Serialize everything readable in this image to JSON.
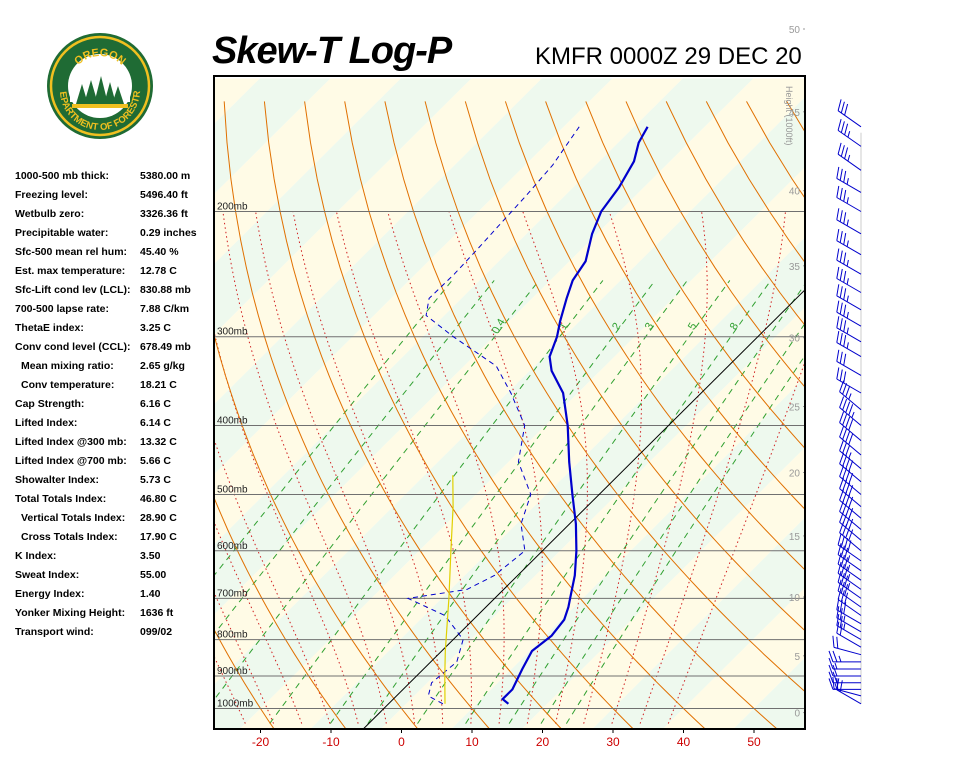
{
  "header": {
    "title": "Skew-T Log-P",
    "station": "KMFR 0000Z 29 DEC 20"
  },
  "logo": {
    "top_text": "OREGON",
    "ring_text": "DEPARTMENT OF FORESTRY"
  },
  "indices": [
    {
      "label": "1000-500 mb thick:",
      "value": "5380.00 m"
    },
    {
      "label": "Freezing level:",
      "value": "5496.40 ft"
    },
    {
      "label": "Wetbulb zero:",
      "value": "3326.36 ft"
    },
    {
      "label": "Precipitable water:",
      "value": "0.29 inches"
    },
    {
      "label": "Sfc-500 mean rel hum:",
      "value": "45.40 %"
    },
    {
      "label": "Est. max temperature:",
      "value": "12.78 C"
    },
    {
      "label": "Sfc-Lift cond lev (LCL):",
      "value": "830.88 mb"
    },
    {
      "label": "700-500 lapse rate:",
      "value": "7.88 C/km"
    },
    {
      "label": "ThetaE index:",
      "value": "3.25 C"
    },
    {
      "label": "Conv cond level (CCL):",
      "value": "678.49 mb"
    },
    {
      "label": "Mean mixing ratio:",
      "value": "2.65 g/kg",
      "indent": true
    },
    {
      "label": "Conv temperature:",
      "value": "18.21 C",
      "indent": true
    },
    {
      "label": "Cap Strength:",
      "value": "6.16 C"
    },
    {
      "label": "Lifted Index:",
      "value": "6.14 C"
    },
    {
      "label": "Lifted Index @300 mb:",
      "value": "13.32 C"
    },
    {
      "label": "Lifted Index @700 mb:",
      "value": "5.66 C"
    },
    {
      "label": "Showalter Index:",
      "value": "5.73 C"
    },
    {
      "label": "Total Totals Index:",
      "value": "46.80 C"
    },
    {
      "label": "Vertical Totals Index:",
      "value": "28.90 C",
      "indent": true
    },
    {
      "label": "Cross Totals Index:",
      "value": "17.90 C",
      "indent": true
    },
    {
      "label": "K Index:",
      "value": "3.50"
    },
    {
      "label": "Sweat Index:",
      "value": "55.00"
    },
    {
      "label": "Energy Index:",
      "value": "1.40"
    },
    {
      "label": "Yonker Mixing Height:",
      "value": "1636 ft"
    },
    {
      "label": "Transport wind:",
      "value": "099/02"
    }
  ],
  "chart_data": {
    "type": "line",
    "x_ticks": [
      -20,
      -10,
      0,
      10,
      20,
      30,
      40,
      50
    ],
    "pressure_levels": [
      {
        "p": 1000,
        "label": "1000mb"
      },
      {
        "p": 900,
        "label": "900mb"
      },
      {
        "p": 800,
        "label": "800mb"
      },
      {
        "p": 700,
        "label": "700mb"
      },
      {
        "p": 600,
        "label": "600mb"
      },
      {
        "p": 500,
        "label": "500mb"
      },
      {
        "p": 400,
        "label": "400mb"
      },
      {
        "p": 300,
        "label": "300mb"
      },
      {
        "p": 200,
        "label": "200mb"
      }
    ],
    "height_axis_title": "Height (1000ft)",
    "height_ticks": [
      0,
      5,
      10,
      15,
      20,
      25,
      30,
      35,
      40,
      45,
      50
    ],
    "mixing_ratio_labels": [
      "0.4",
      "1",
      "2",
      "3",
      "5",
      "8"
    ],
    "colors": {
      "temperature": "#0000cc",
      "dewpoint": "#0000cc",
      "parcel": "#e0d000",
      "dry_adiabat": "#e07000",
      "moist_adiabat": "#d02020",
      "mixing_ratio": "#30a030",
      "wind_barb": "#0000cc",
      "band_yellow": "#fffbe6",
      "band_green": "#eef9ee"
    },
    "series": [
      {
        "style": "solid",
        "points": [
          {
            "p": 985,
            "t": 14.5
          },
          {
            "p": 970,
            "t": 13.0
          },
          {
            "p": 940,
            "t": 13.0
          },
          {
            "p": 880,
            "t": 11.5
          },
          {
            "p": 830,
            "t": 10.3
          },
          {
            "p": 790,
            "t": 10.9
          },
          {
            "p": 750,
            "t": 10.4
          },
          {
            "p": 720,
            "t": 9.2
          },
          {
            "p": 700,
            "t": 8.2
          },
          {
            "p": 650,
            "t": 5.6
          },
          {
            "p": 600,
            "t": 2.3
          },
          {
            "p": 550,
            "t": -1.6
          },
          {
            "p": 500,
            "t": -6.3
          },
          {
            "p": 450,
            "t": -11.4
          },
          {
            "p": 400,
            "t": -16.8
          },
          {
            "p": 360,
            "t": -22.1
          },
          {
            "p": 335,
            "t": -26.9
          },
          {
            "p": 320,
            "t": -29.2
          },
          {
            "p": 300,
            "t": -31.0
          },
          {
            "p": 285,
            "t": -32.8
          },
          {
            "p": 265,
            "t": -35.1
          },
          {
            "p": 250,
            "t": -36.8
          },
          {
            "p": 235,
            "t": -37.7
          },
          {
            "p": 215,
            "t": -40.7
          },
          {
            "p": 200,
            "t": -42.6
          },
          {
            "p": 185,
            "t": -43.5
          },
          {
            "p": 170,
            "t": -45.1
          },
          {
            "p": 160,
            "t": -47.1
          },
          {
            "p": 152,
            "t": -48.1
          }
        ]
      },
      {
        "style": "dashed",
        "points": [
          {
            "p": 985,
            "t": 5.2
          },
          {
            "p": 960,
            "t": 2.0
          },
          {
            "p": 920,
            "t": 0.6
          },
          {
            "p": 860,
            "t": 1.2
          },
          {
            "p": 800,
            "t": -1.1
          },
          {
            "p": 740,
            "t": -7.1
          },
          {
            "p": 700,
            "t": -14.8
          },
          {
            "p": 680,
            "t": -7.7
          },
          {
            "p": 650,
            "t": -5.8
          },
          {
            "p": 600,
            "t": -5.0
          },
          {
            "p": 550,
            "t": -9.4
          },
          {
            "p": 500,
            "t": -12.2
          },
          {
            "p": 450,
            "t": -18.6
          },
          {
            "p": 400,
            "t": -22.9
          },
          {
            "p": 360,
            "t": -29.5
          },
          {
            "p": 330,
            "t": -35.4
          },
          {
            "p": 300,
            "t": -45.7
          },
          {
            "p": 280,
            "t": -52.6
          },
          {
            "p": 265,
            "t": -54.6
          },
          {
            "p": 245,
            "t": -54.5
          },
          {
            "p": 225,
            "t": -54.8
          },
          {
            "p": 210,
            "t": -55.1
          },
          {
            "p": 190,
            "t": -55.5
          },
          {
            "p": 172,
            "t": -56.1
          },
          {
            "p": 160,
            "t": -57.1
          },
          {
            "p": 152,
            "t": -57.8
          }
        ]
      },
      {
        "style": "parcel",
        "points": [
          {
            "p": 985,
            "t": 5.5
          },
          {
            "p": 900,
            "t": 1.5
          },
          {
            "p": 830,
            "t": -2.0
          },
          {
            "p": 700,
            "t": -9.0
          },
          {
            "p": 600,
            "t": -15.5
          },
          {
            "p": 520,
            "t": -21.5
          },
          {
            "p": 470,
            "t": -26.0
          }
        ]
      }
    ],
    "wind_barbs": [
      {
        "p": 985,
        "dir": 300,
        "spd": 20
      },
      {
        "p": 960,
        "dir": 285,
        "spd": 20
      },
      {
        "p": 940,
        "dir": 270,
        "spd": 15
      },
      {
        "p": 920,
        "dir": 270,
        "spd": 20
      },
      {
        "p": 900,
        "dir": 270,
        "spd": 20
      },
      {
        "p": 880,
        "dir": 270,
        "spd": 15
      },
      {
        "p": 860,
        "dir": 270,
        "spd": 25
      },
      {
        "p": 840,
        "dir": 285,
        "spd": 20
      },
      {
        "p": 820,
        "dir": 300,
        "spd": 20
      },
      {
        "p": 800,
        "dir": 300,
        "spd": 25
      },
      {
        "p": 780,
        "dir": 300,
        "spd": 25
      },
      {
        "p": 760,
        "dir": 300,
        "spd": 30
      },
      {
        "p": 740,
        "dir": 305,
        "spd": 30
      },
      {
        "p": 720,
        "dir": 305,
        "spd": 30
      },
      {
        "p": 700,
        "dir": 305,
        "spd": 35
      },
      {
        "p": 680,
        "dir": 305,
        "spd": 35
      },
      {
        "p": 660,
        "dir": 305,
        "spd": 35
      },
      {
        "p": 640,
        "dir": 305,
        "spd": 35
      },
      {
        "p": 620,
        "dir": 305,
        "spd": 40
      },
      {
        "p": 600,
        "dir": 310,
        "spd": 40
      },
      {
        "p": 580,
        "dir": 310,
        "spd": 40
      },
      {
        "p": 560,
        "dir": 310,
        "spd": 40
      },
      {
        "p": 540,
        "dir": 310,
        "spd": 40
      },
      {
        "p": 520,
        "dir": 310,
        "spd": 40
      },
      {
        "p": 500,
        "dir": 310,
        "spd": 40
      },
      {
        "p": 480,
        "dir": 310,
        "spd": 40
      },
      {
        "p": 460,
        "dir": 310,
        "spd": 35
      },
      {
        "p": 440,
        "dir": 310,
        "spd": 40
      },
      {
        "p": 420,
        "dir": 310,
        "spd": 40
      },
      {
        "p": 400,
        "dir": 310,
        "spd": 45
      },
      {
        "p": 380,
        "dir": 310,
        "spd": 35
      },
      {
        "p": 360,
        "dir": 300,
        "spd": 30
      },
      {
        "p": 340,
        "dir": 300,
        "spd": 30
      },
      {
        "p": 320,
        "dir": 300,
        "spd": 35
      },
      {
        "p": 305,
        "dir": 300,
        "spd": 35
      },
      {
        "p": 290,
        "dir": 300,
        "spd": 35
      },
      {
        "p": 275,
        "dir": 300,
        "spd": 35
      },
      {
        "p": 260,
        "dir": 300,
        "spd": 35
      },
      {
        "p": 245,
        "dir": 300,
        "spd": 35
      },
      {
        "p": 230,
        "dir": 300,
        "spd": 35
      },
      {
        "p": 215,
        "dir": 300,
        "spd": 35
      },
      {
        "p": 200,
        "dir": 300,
        "spd": 35
      },
      {
        "p": 188,
        "dir": 300,
        "spd": 35
      },
      {
        "p": 175,
        "dir": 305,
        "spd": 35
      },
      {
        "p": 162,
        "dir": 305,
        "spd": 35
      },
      {
        "p": 152,
        "dir": 305,
        "spd": 30
      }
    ]
  }
}
